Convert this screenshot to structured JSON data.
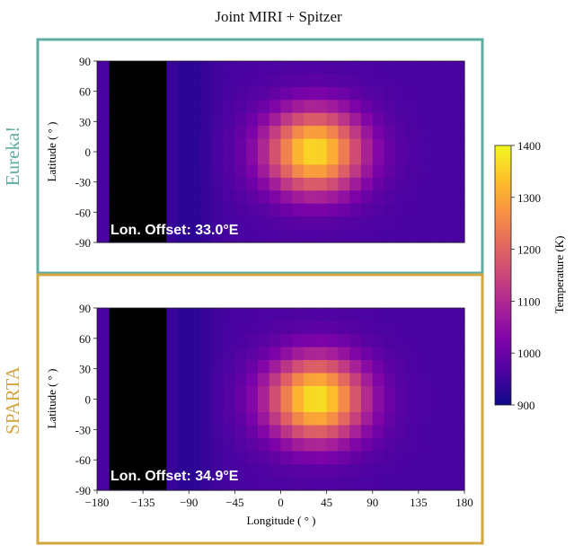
{
  "figure": {
    "title": "Joint MIRI + Spitzer"
  },
  "colorbar": {
    "label": "Temperature (K)",
    "min": 900,
    "max": 1400,
    "ticks": [
      "1400",
      "1300",
      "1200",
      "1100",
      "1000",
      "900"
    ],
    "colormap": "plasma"
  },
  "colors": {
    "eureka": "#5fada0",
    "sparta": "#d2a640",
    "masked": "#000000"
  },
  "chart_data": [
    {
      "type": "heatmap",
      "panel": "Eureka!",
      "annotation": "Lon. Offset: 33.0°E",
      "xlabel": "",
      "ylabel": "Latitude ( ° )",
      "xlim": [
        -180,
        180
      ],
      "ylim": [
        -90,
        90
      ],
      "yticks": [
        "90",
        "60",
        "30",
        "0",
        "-30",
        "-60",
        "-90"
      ],
      "xticks": [],
      "hotspot": {
        "lon": 33.0,
        "lat": 0,
        "peak_K": 1370
      },
      "masked_lon_range": [
        -168,
        -112
      ],
      "value_range_K": [
        960,
        1370
      ]
    },
    {
      "type": "heatmap",
      "panel": "SPARTA",
      "annotation": "Lon. Offset: 34.9°E",
      "xlabel": "Longitude ( ° )",
      "ylabel": "Latitude ( ° )",
      "xlim": [
        -180,
        180
      ],
      "ylim": [
        -90,
        90
      ],
      "yticks": [
        "90",
        "60",
        "30",
        "0",
        "-30",
        "-60",
        "-90"
      ],
      "xticks": [
        "−180",
        "−135",
        "−90",
        "−45",
        "0",
        "45",
        "90",
        "135",
        "180"
      ],
      "hotspot": {
        "lon": 34.9,
        "lat": 0,
        "peak_K": 1380
      },
      "masked_lon_range": [
        -168,
        -112
      ],
      "value_range_K": [
        960,
        1380
      ]
    }
  ]
}
